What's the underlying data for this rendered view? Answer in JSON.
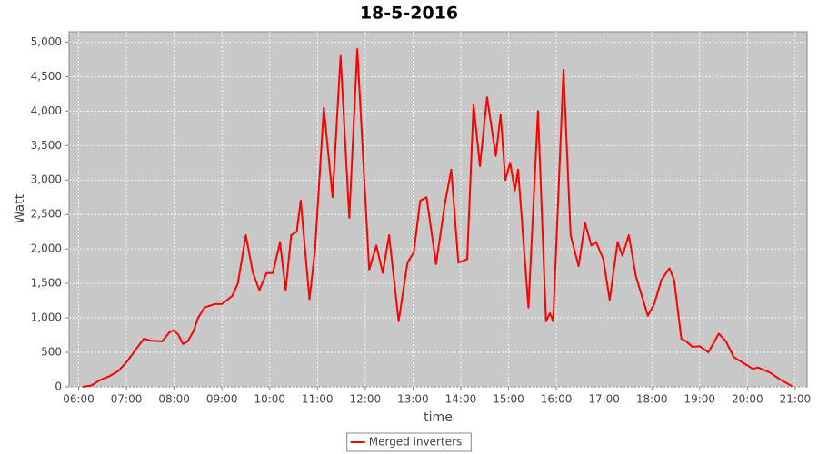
{
  "chart_data": {
    "type": "line",
    "title": "18-5-2016",
    "x_label": "time",
    "y_label": "Watt",
    "x": [
      "06:05",
      "06:16",
      "06:27",
      "06:38",
      "06:50",
      "07:01",
      "07:13",
      "07:22",
      "07:30",
      "07:45",
      "07:54",
      "07:59",
      "08:05",
      "08:11",
      "08:17",
      "08:24",
      "08:30",
      "08:38",
      "08:51",
      "09:00",
      "09:13",
      "09:20",
      "09:30",
      "09:39",
      "09:47",
      "09:56",
      "10:04",
      "10:13",
      "10:20",
      "10:27",
      "10:34",
      "10:39",
      "10:50",
      "10:57",
      "11:08",
      "11:19",
      "11:29",
      "11:40",
      "11:50",
      "12:05",
      "12:14",
      "12:22",
      "12:30",
      "12:42",
      "12:53",
      "13:01",
      "13:09",
      "13:17",
      "13:29",
      "13:40",
      "13:48",
      "13:57",
      "14:08",
      "14:16",
      "14:24",
      "14:33",
      "14:44",
      "14:50",
      "14:56",
      "15:02",
      "15:08",
      "15:12",
      "15:25",
      "15:37",
      "15:47",
      "15:52",
      "15:56",
      "16:09",
      "16:18",
      "16:28",
      "16:36",
      "16:44",
      "16:50",
      "16:59",
      "17:07",
      "17:17",
      "17:23",
      "17:31",
      "17:40",
      "17:55",
      "18:03",
      "18:12",
      "18:22",
      "18:28",
      "18:37",
      "18:43",
      "18:51",
      "19:00",
      "19:11",
      "19:24",
      "19:33",
      "19:43",
      "19:57",
      "20:07",
      "20:13",
      "20:28",
      "20:42",
      "20:56"
    ],
    "series": [
      {
        "name": "Merged inverters",
        "color": "#ff0000",
        "values": [
          0,
          20,
          100,
          150,
          230,
          370,
          560,
          700,
          670,
          660,
          790,
          820,
          760,
          620,
          660,
          800,
          1000,
          1150,
          1200,
          1200,
          1320,
          1500,
          2200,
          1650,
          1400,
          1650,
          1650,
          2100,
          1400,
          2200,
          2250,
          2700,
          1270,
          2000,
          4050,
          2750,
          4800,
          2450,
          4900,
          1700,
          2050,
          1650,
          2200,
          950,
          1800,
          1950,
          2700,
          2750,
          1780,
          2650,
          3150,
          1800,
          1850,
          4100,
          3200,
          4200,
          3350,
          3950,
          3000,
          3250,
          2850,
          3150,
          1150,
          4000,
          950,
          1070,
          950,
          4600,
          2200,
          1750,
          2380,
          2050,
          2100,
          1850,
          1260,
          2100,
          1900,
          2200,
          1600,
          1030,
          1200,
          1550,
          1720,
          1550,
          700,
          660,
          580,
          590,
          500,
          770,
          660,
          430,
          330,
          260,
          280,
          210,
          100,
          10
        ]
      }
    ],
    "xlim": [
      "05:48",
      "21:15"
    ],
    "xticks": [
      "06:00",
      "07:00",
      "08:00",
      "09:00",
      "10:00",
      "11:00",
      "12:00",
      "13:00",
      "14:00",
      "15:00",
      "16:00",
      "17:00",
      "18:00",
      "19:00",
      "20:00",
      "21:00"
    ],
    "ylim": [
      0,
      5150
    ],
    "yticks": [
      0,
      500,
      {
        "value": 1000,
        "label": "1,000"
      },
      {
        "value": 1500,
        "label": "1,500"
      },
      {
        "value": 2000,
        "label": "2,000"
      },
      {
        "value": 2500,
        "label": "2,500"
      },
      {
        "value": 3000,
        "label": "3,000"
      },
      {
        "value": 3500,
        "label": "3,500"
      },
      {
        "value": 4000,
        "label": "4,000"
      },
      {
        "value": 4500,
        "label": "4,500"
      },
      {
        "value": 5000,
        "label": "5,000"
      }
    ],
    "grid": true,
    "legend": "bottom"
  }
}
